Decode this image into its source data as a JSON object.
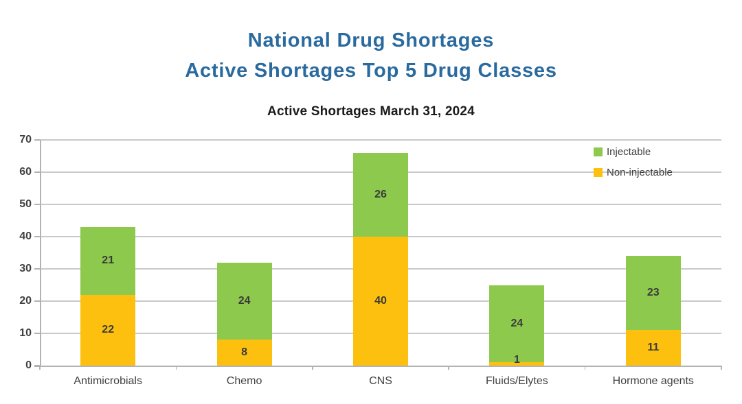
{
  "header": {
    "title_line1": "National Drug Shortages",
    "title_line2": "Active Shortages Top 5 Drug Classes"
  },
  "chart_data": {
    "type": "bar",
    "stacked": true,
    "title": "Active Shortages March 31, 2024",
    "categories": [
      "Antimicrobials",
      "Chemo",
      "CNS",
      "Fluids/Elytes",
      "Hormone agents"
    ],
    "series": [
      {
        "name": "Non-injectable",
        "color": "#fdc00f",
        "values": [
          22,
          8,
          40,
          1,
          11
        ]
      },
      {
        "name": "Injectable",
        "color": "#8dc94d",
        "values": [
          21,
          24,
          26,
          24,
          23
        ]
      }
    ],
    "ylim": [
      0,
      70
    ],
    "ytick_step": 10,
    "grid": true,
    "data_labels": "inside-center",
    "legend": {
      "position": "top-right",
      "order": [
        "Injectable",
        "Non-injectable"
      ]
    }
  },
  "colors": {
    "title_blue": "#2a6a9e",
    "injectable_green": "#8dc94d",
    "non_injectable_orange": "#fdc00f",
    "gridline": "#c9c9c9",
    "axis": "#b3b3b3",
    "label_text": "#404040",
    "subtitle_text": "#1a1a1a",
    "background": "#ffffff"
  }
}
